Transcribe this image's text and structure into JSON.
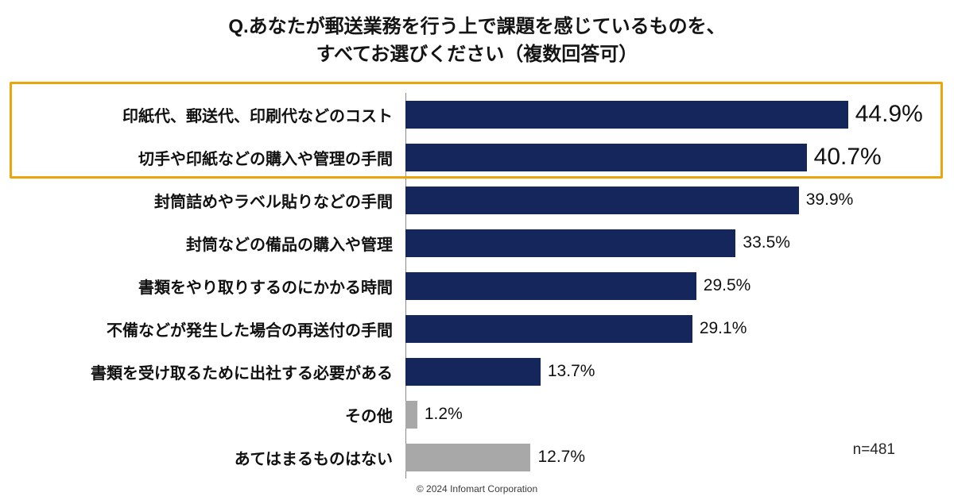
{
  "title": {
    "line1": "Q.あなたが郵送業務を行う上で課題を感じているものを、",
    "line2": "すべてお選びください（複数回答可）"
  },
  "chart_data": {
    "type": "bar",
    "orientation": "horizontal",
    "title": "Q.あなたが郵送業務を行う上で課題を感じているものを、すべてお選びください（複数回答可）",
    "categories": [
      "印紙代、郵送代、印刷代などのコスト",
      "切手や印紙などの購入や管理の手間",
      "封筒詰めやラベル貼りなどの手間",
      "封筒などの備品の購入や管理",
      "書類をやり取りするのにかかる時間",
      "不備などが発生した場合の再送付の手間",
      "書類を受け取るために出社する必要がある",
      "その他",
      "あてはまるものはない"
    ],
    "values": [
      44.9,
      40.7,
      39.9,
      33.5,
      29.5,
      29.1,
      13.7,
      1.2,
      12.7
    ],
    "value_labels": [
      "44.9%",
      "40.7%",
      "39.9%",
      "33.5%",
      "29.5%",
      "29.1%",
      "13.7%",
      "1.2%",
      "12.7%"
    ],
    "bar_colors": [
      "#14265c",
      "#14265c",
      "#14265c",
      "#14265c",
      "#14265c",
      "#14265c",
      "#14265c",
      "#a8a8a8",
      "#a8a8a8"
    ],
    "highlight_indices": [
      0,
      1
    ],
    "highlight_color": "#e9a50a",
    "xlabel": "",
    "ylabel": "",
    "xlim": [
      0,
      50
    ],
    "grid": false,
    "legend": false,
    "sample_size": "n=481"
  },
  "footer": {
    "sample_size": "n=481",
    "copyright": "© 2024 Infomart Corporation"
  },
  "colors": {
    "bar_primary": "#14265c",
    "bar_muted": "#a8a8a8",
    "highlight_border": "#e9a50a",
    "text": "#111111"
  }
}
